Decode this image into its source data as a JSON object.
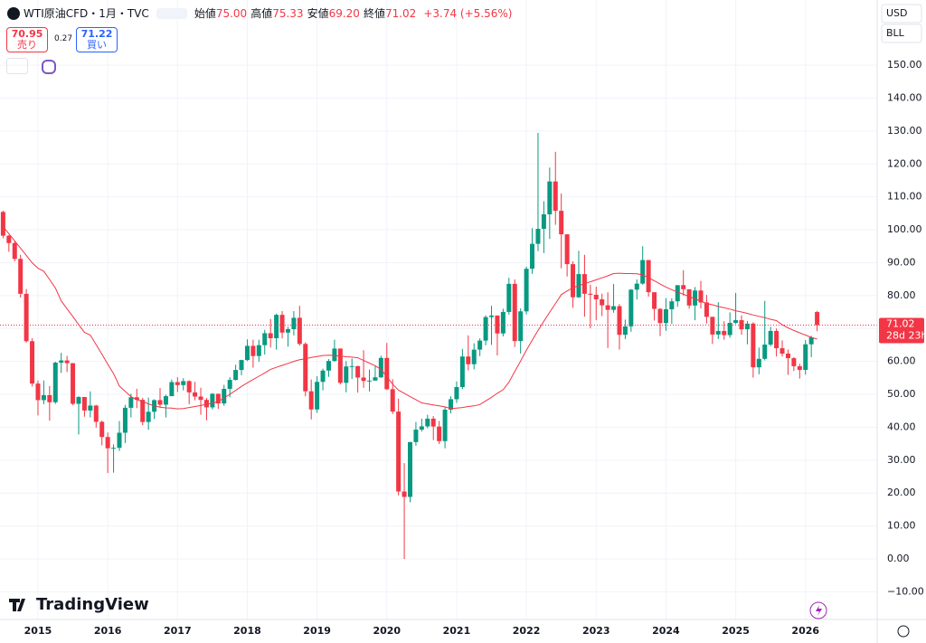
{
  "header": {
    "symbol": "WTI原油CFD・1月・TVC",
    "items": [
      {
        "label": "始値",
        "value": "75.00"
      },
      {
        "label": "高値",
        "value": "75.33"
      },
      {
        "label": "安値",
        "value": "69.20"
      },
      {
        "label": "終値",
        "value": "71.02"
      }
    ],
    "change": "+3.74 (+5.56%)",
    "sell": {
      "price": "70.95",
      "label": "売り"
    },
    "spread": "0.27",
    "buy": {
      "price": "71.22",
      "label": "買い"
    }
  },
  "right_panel": {
    "currency": "USD",
    "unit": "BLL",
    "countdown": "28d 23h"
  },
  "logo": "TradingView",
  "chart_data": {
    "type": "candlestick",
    "title": "WTI原油CFD・1月・TVC",
    "categories": [
      null,
      null,
      null,
      null,
      null,
      null,
      "2015",
      null,
      null,
      null,
      null,
      null,
      null,
      null,
      null,
      null,
      null,
      null,
      "2016",
      null,
      null,
      null,
      null,
      null,
      null,
      null,
      null,
      null,
      null,
      null,
      "2017",
      null,
      null,
      null,
      null,
      null,
      null,
      null,
      null,
      null,
      null,
      null,
      "2018",
      null,
      null,
      null,
      null,
      null,
      null,
      null,
      null,
      null,
      null,
      null,
      "2019",
      null,
      null,
      null,
      null,
      null,
      null,
      null,
      null,
      null,
      null,
      null,
      "2020",
      null,
      null,
      null,
      null,
      null,
      null,
      null,
      null,
      null,
      null,
      null,
      "2021",
      null,
      null,
      null,
      null,
      null,
      null,
      null,
      null,
      null,
      null,
      null,
      "2022",
      null,
      null,
      null,
      null,
      null,
      null,
      null,
      null,
      null,
      null,
      null,
      "2023",
      null,
      null,
      null,
      null,
      null,
      null,
      null,
      null,
      null,
      null,
      null,
      "2024",
      null,
      null,
      null,
      null,
      null,
      null,
      null,
      null,
      null,
      null,
      null,
      "2025",
      null,
      null,
      null,
      null,
      null,
      null,
      null,
      null,
      null,
      null,
      null,
      "2026",
      null,
      null
    ],
    "open": [
      105.4,
      98.2,
      95.96,
      91.16,
      80.54,
      66.15,
      53.27,
      48.24,
      49.76,
      47.6,
      59.63,
      60.3,
      59.47,
      47.12,
      49.2,
      45.09,
      46.59,
      41.65,
      37.04,
      33.62,
      33.75,
      38.34,
      45.92,
      49.1,
      48.33,
      41.6,
      44.7,
      48.24,
      46.86,
      49.44,
      53.72,
      52.81,
      54.01,
      50.6,
      49.33,
      48.32,
      46.04,
      50.17,
      47.23,
      51.67,
      54.38,
      57.4,
      60.42,
      64.73,
      61.64,
      64.94,
      68.57,
      67.04,
      74.15,
      68.76,
      69.8,
      73.25,
      65.31,
      50.93,
      45.41,
      53.79,
      57.22,
      60.14,
      63.91,
      53.5,
      58.47,
      58.58,
      55.1,
      54.07,
      54.18,
      55.17,
      61.06,
      51.56,
      44.76,
      20.48,
      18.84,
      35.49,
      39.27,
      40.27,
      42.61,
      40.22,
      35.79,
      45.34,
      48.52,
      52.2,
      61.5,
      59.16,
      63.58,
      66.32,
      73.47,
      73.95,
      68.5,
      75.03,
      83.57,
      66.18,
      75.21,
      88.15,
      95.72,
      100.28,
      104.69,
      114.67,
      105.76,
      98.62,
      89.55,
      79.49,
      86.53,
      80.55,
      80.26,
      78.87,
      77.05,
      75.67,
      76.78,
      68.09,
      70.64,
      81.8,
      83.63,
      90.79,
      81.02,
      75.96,
      71.65,
      75.85,
      78.26,
      83.17,
      81.93,
      76.99,
      81.54,
      77.91,
      73.55,
      68.17,
      69.26,
      68.0,
      71.72,
      72.53,
      69.76,
      71.48,
      58.21,
      60.79,
      65.11,
      69.26,
      64.01,
      62.37,
      60.98,
      58.55,
      57.42,
      65.2,
      75.0
    ],
    "high": [
      105.8,
      98.4,
      96.5,
      92.4,
      82.0,
      67.0,
      54.2,
      54.2,
      52.5,
      59.9,
      62.6,
      61.7,
      59.5,
      49.4,
      48.4,
      50.9,
      46.8,
      42.0,
      38.4,
      34.8,
      41.9,
      46.8,
      50.2,
      51.7,
      48.9,
      49.0,
      48.5,
      51.9,
      49.9,
      54.5,
      55.2,
      54.9,
      54.3,
      53.8,
      52.0,
      48.9,
      50.4,
      50.2,
      52.9,
      55.2,
      59.0,
      60.5,
      66.7,
      66.6,
      66.6,
      69.6,
      72.9,
      74.5,
      75.3,
      70.5,
      75.3,
      76.9,
      65.8,
      54.5,
      55.5,
      57.8,
      60.7,
      66.6,
      63.9,
      60.1,
      60.9,
      58.7,
      63.4,
      57.5,
      58.7,
      61.7,
      65.6,
      54.6,
      48.7,
      29.1,
      35.6,
      41.6,
      42.6,
      43.8,
      43.4,
      41.9,
      46.3,
      49.4,
      53.9,
      63.8,
      67.9,
      65.5,
      67.0,
      74.0,
      76.9,
      73.6,
      76.0,
      85.4,
      84.9,
      76.1,
      88.8,
      100.5,
      129.4,
      108.7,
      118.9,
      123.7,
      111.0,
      97.7,
      90.4,
      93.6,
      92.4,
      83.3,
      82.7,
      80.6,
      81.0,
      83.5,
      77.4,
      72.7,
      82.0,
      84.9,
      95.0,
      90.8,
      79.6,
      76.2,
      79.2,
      79.2,
      83.1,
      87.7,
      81.5,
      82.6,
      84.5,
      80.2,
      71.8,
      78.0,
      72.2,
      74.9,
      80.8,
      74.0,
      72.3,
      71.9,
      64.2,
      78.4,
      70.5,
      70.0,
      66.4,
      63.6,
      61.3,
      59.3,
      66.5,
      67.8,
      75.33
    ],
    "low": [
      97.4,
      93.3,
      90.4,
      79.4,
      65.7,
      52.4,
      43.6,
      47.0,
      42.0,
      47.1,
      56.5,
      56.8,
      46.7,
      37.8,
      43.2,
      43.0,
      39.9,
      34.5,
      26.1,
      26.2,
      32.8,
      35.2,
      43.0,
      45.8,
      40.6,
      39.2,
      42.5,
      46.0,
      43.0,
      49.9,
      50.7,
      51.2,
      47.0,
      48.2,
      43.8,
      42.1,
      45.4,
      45.6,
      46.5,
      49.1,
      54.2,
      55.8,
      60.1,
      58.1,
      59.9,
      62.1,
      64.2,
      63.6,
      67.0,
      64.5,
      67.9,
      64.8,
      49.4,
      42.4,
      44.4,
      51.2,
      55.3,
      59.9,
      53.0,
      50.6,
      54.7,
      50.5,
      52.0,
      50.9,
      54.2,
      55.0,
      51.3,
      44.0,
      19.3,
      0.0,
      17.2,
      34.4,
      38.7,
      39.7,
      36.1,
      34.9,
      33.6,
      44.2,
      47.4,
      51.6,
      57.3,
      57.6,
      61.6,
      64.9,
      65.0,
      61.8,
      67.6,
      74.2,
      64.4,
      62.4,
      74.3,
      86.6,
      93.5,
      92.9,
      97.2,
      101.5,
      88.3,
      85.8,
      76.3,
      79.3,
      73.6,
      70.1,
      72.5,
      73.8,
      64.1,
      74.8,
      63.6,
      66.8,
      69.0,
      78.8,
      83.3,
      79.7,
      72.4,
      67.7,
      69.3,
      71.4,
      76.6,
      80.0,
      76.0,
      72.5,
      76.1,
      71.5,
      65.3,
      66.8,
      66.6,
      67.2,
      71.4,
      68.1,
      65.2,
      55.1,
      56.1,
      60.3,
      64.6,
      61.5,
      61.5,
      55.9,
      57.1,
      54.8,
      56.0,
      61.3,
      69.2
    ],
    "close": [
      98.2,
      95.96,
      91.16,
      80.54,
      66.15,
      53.27,
      48.24,
      49.76,
      47.6,
      59.63,
      60.3,
      59.47,
      47.12,
      49.2,
      45.09,
      46.59,
      41.65,
      37.04,
      33.62,
      33.75,
      38.34,
      45.92,
      49.1,
      48.33,
      41.6,
      44.7,
      48.24,
      46.86,
      49.44,
      53.72,
      52.81,
      54.01,
      50.6,
      49.33,
      48.32,
      46.04,
      50.17,
      47.23,
      51.67,
      54.38,
      57.4,
      60.42,
      64.73,
      61.64,
      64.94,
      68.57,
      67.04,
      74.15,
      68.76,
      69.8,
      73.25,
      65.31,
      50.93,
      45.41,
      53.79,
      57.22,
      60.14,
      63.91,
      53.5,
      58.47,
      58.58,
      55.1,
      54.07,
      54.18,
      55.17,
      61.06,
      51.56,
      44.76,
      20.48,
      18.84,
      35.49,
      39.27,
      40.27,
      42.61,
      40.22,
      35.79,
      45.34,
      48.52,
      52.2,
      61.5,
      59.16,
      63.58,
      66.32,
      73.47,
      73.95,
      68.5,
      75.03,
      83.57,
      66.18,
      75.21,
      88.15,
      95.72,
      100.28,
      104.69,
      114.67,
      105.76,
      98.62,
      89.55,
      79.49,
      86.53,
      80.55,
      80.26,
      78.87,
      77.05,
      75.67,
      76.78,
      68.09,
      70.64,
      81.8,
      83.63,
      90.79,
      81.02,
      75.96,
      71.65,
      75.85,
      78.26,
      83.17,
      81.93,
      76.99,
      81.54,
      77.91,
      73.55,
      68.17,
      69.26,
      68.0,
      71.72,
      72.53,
      69.76,
      71.48,
      58.21,
      60.79,
      65.11,
      69.26,
      64.01,
      62.37,
      60.98,
      58.55,
      57.42,
      65.2,
      67.28,
      71.02
    ],
    "ma": {
      "color": "#f23645",
      "values": [
        101,
        98.8,
        96.6,
        94.4,
        92.2,
        90,
        88.3,
        87.4,
        84.9,
        82.3,
        78.4,
        76.0,
        73.6,
        71.2,
        68.8,
        68,
        65.1,
        62.2,
        59.2,
        56.3,
        52.5,
        50.9,
        49.3,
        48.4,
        47.8,
        47.1,
        46.5,
        46.1,
        45.9,
        45.8,
        45.6,
        45.7,
        46.0,
        46.3,
        46.6,
        47.0,
        47.3,
        47.8,
        48.9,
        50.0,
        51.2,
        52.4,
        53.5,
        54.5,
        55.5,
        56.5,
        57.6,
        58.2,
        58.8,
        59.4,
        60.0,
        60.5,
        60.8,
        61.2,
        61.5,
        61.8,
        61.9,
        61.8,
        61.6,
        61.4,
        61.3,
        61.1,
        60.3,
        59.5,
        58.7,
        57.6,
        55.4,
        53.1,
        51.3,
        50.3,
        49.3,
        48.4,
        47.4,
        47.1,
        46.8,
        46.5,
        46.2,
        45.7,
        45.8,
        46.0,
        46.3,
        46.5,
        46.9,
        48.0,
        49.1,
        50.3,
        51.4,
        53.7,
        56.9,
        60.1,
        63.4,
        66.4,
        69.4,
        72.2,
        74.9,
        77.6,
        80.3,
        81.4,
        82.4,
        83,
        83.6,
        84.2,
        84.8,
        85.4,
        86.0,
        86.7,
        86.8,
        86.7,
        86.7,
        86.6,
        86.3,
        85.4,
        84.5,
        83.5,
        82.6,
        81.8,
        81.1,
        80.4,
        79.7,
        79.0,
        78.3,
        77.6,
        77.2,
        76.7,
        76.3,
        75.9,
        75.4,
        75.0,
        74.6,
        74.1,
        73.7,
        73.3,
        72.8,
        72.4,
        71.1,
        70.2,
        69.4,
        68.7,
        68.0,
        67.3,
        66.8
      ]
    },
    "up_color": "#089981",
    "down_color": "#f23645",
    "ylim": [
      -18.4,
      169.8
    ],
    "yticks": [
      {
        "value": -10,
        "label": "−10.00"
      },
      {
        "value": 0,
        "label": "0.00"
      },
      {
        "value": 10,
        "label": "10.00"
      },
      {
        "value": 20,
        "label": "20.00"
      },
      {
        "value": 30,
        "label": "30.00"
      },
      {
        "value": 40,
        "label": "40.00"
      },
      {
        "value": 50,
        "label": "50.00"
      },
      {
        "value": 60,
        "label": "60.00"
      },
      {
        "value": 70,
        "label": "70.00"
      },
      {
        "value": 80,
        "label": "80.00"
      },
      {
        "value": 90,
        "label": "90.00"
      },
      {
        "value": 100,
        "label": "100.00"
      },
      {
        "value": 110,
        "label": "110.00"
      },
      {
        "value": 120,
        "label": "120.00"
      },
      {
        "value": 130,
        "label": "130.00"
      },
      {
        "value": 140,
        "label": "140.00"
      },
      {
        "value": 150,
        "label": "150.00"
      }
    ],
    "grid": true
  }
}
